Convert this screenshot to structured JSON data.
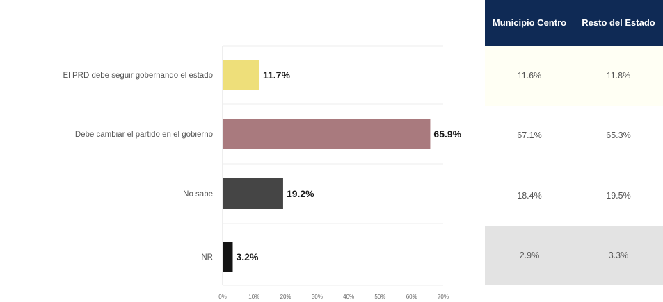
{
  "chart_data": {
    "type": "bar",
    "orientation": "horizontal",
    "categories": [
      "El PRD debe seguir gobernando el estado",
      "Debe cambiar el partido en el gobierno",
      "No sabe",
      "NR"
    ],
    "values": [
      11.7,
      65.9,
      19.2,
      3.2
    ],
    "value_labels": [
      "11.7%",
      "65.9%",
      "19.2%",
      "3.2%"
    ],
    "colors": [
      "#eedf7a",
      "#a97a7e",
      "#454545",
      "#141414"
    ],
    "xlim": [
      0,
      70
    ],
    "xticks": [
      0,
      10,
      20,
      30,
      40,
      50,
      60,
      70
    ],
    "xtick_labels": [
      "0%",
      "10%",
      "20%",
      "30%",
      "40%",
      "50%",
      "60%",
      "70%"
    ],
    "grid": true
  },
  "table": {
    "headers": [
      "Municipio Centro",
      "Resto del Estado"
    ],
    "rows": [
      [
        "11.6%",
        "11.8%"
      ],
      [
        "67.1%",
        "65.3%"
      ],
      [
        "18.4%",
        "19.5%"
      ],
      [
        "2.9%",
        "3.3%"
      ]
    ],
    "row_colors": [
      "#fffff4",
      "#ffffff",
      "#ffffff",
      "#e3e3e3"
    ],
    "header_color": "#0f2a55"
  }
}
